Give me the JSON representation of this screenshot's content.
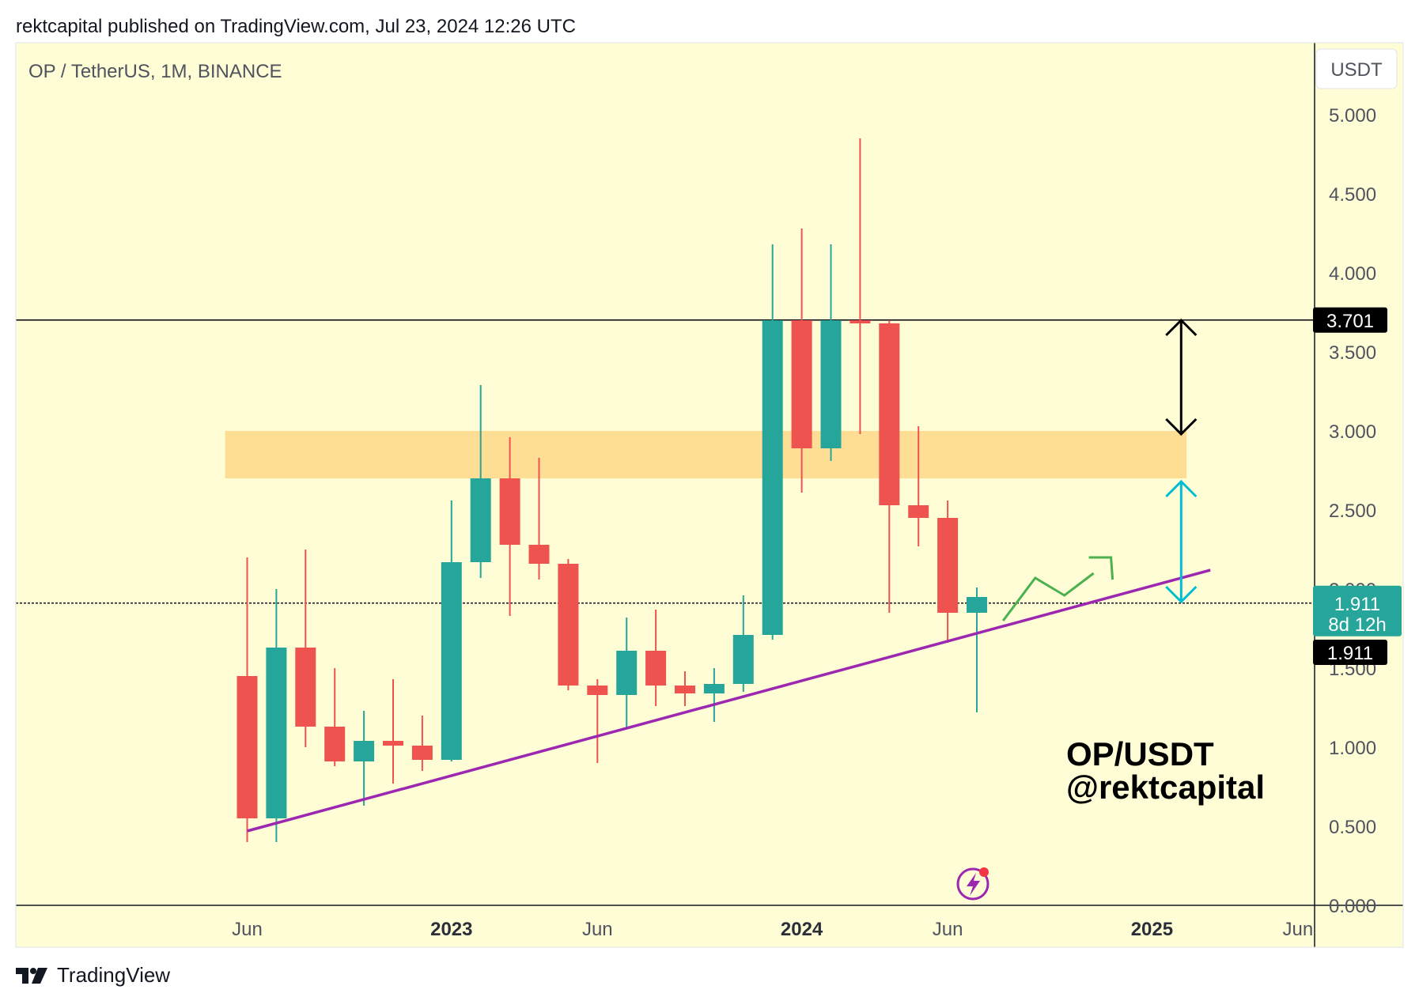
{
  "header": {
    "text": "rektcapital published on TradingView.com, Jul 23, 2024 12:26 UTC"
  },
  "footer": {
    "brand": "TradingView",
    "logo_icon": "tradingview-logo-icon"
  },
  "chart_data": {
    "type": "candlestick",
    "symbol": "OP / TetherUS, 1M, BINANCE",
    "currency": "USDT",
    "ylim": [
      0,
      5.25
    ],
    "y_ticks": [
      "5.000",
      "4.500",
      "4.000",
      "3.500",
      "3.000",
      "2.500",
      "2.000",
      "1.500",
      "1.000",
      "0.500",
      "0.000"
    ],
    "y_tick_values": [
      5.0,
      4.5,
      4.0,
      3.5,
      3.0,
      2.5,
      2.0,
      1.5,
      1.0,
      0.5,
      0.0
    ],
    "x_ticks": [
      {
        "label": "Jun",
        "index": 0,
        "bold": false
      },
      {
        "label": "2023",
        "index": 7,
        "bold": true
      },
      {
        "label": "Jun",
        "index": 12,
        "bold": false
      },
      {
        "label": "2024",
        "index": 19,
        "bold": true
      },
      {
        "label": "Jun",
        "index": 24,
        "bold": false
      },
      {
        "label": "2025",
        "index": 31,
        "bold": true
      },
      {
        "label": "Jun",
        "index": 36,
        "bold": false
      }
    ],
    "candles": [
      {
        "o": 1.45,
        "h": 2.2,
        "l": 0.4,
        "c": 0.55
      },
      {
        "o": 0.55,
        "h": 2.0,
        "l": 0.4,
        "c": 1.63
      },
      {
        "o": 1.63,
        "h": 2.25,
        "l": 1.0,
        "c": 1.13
      },
      {
        "o": 1.13,
        "h": 1.5,
        "l": 0.88,
        "c": 0.91
      },
      {
        "o": 0.91,
        "h": 1.23,
        "l": 0.63,
        "c": 1.04
      },
      {
        "o": 1.04,
        "h": 1.43,
        "l": 0.77,
        "c": 1.01
      },
      {
        "o": 1.01,
        "h": 1.2,
        "l": 0.85,
        "c": 0.92
      },
      {
        "o": 0.92,
        "h": 2.56,
        "l": 0.91,
        "c": 2.17
      },
      {
        "o": 2.17,
        "h": 3.29,
        "l": 2.07,
        "c": 2.7
      },
      {
        "o": 2.7,
        "h": 2.96,
        "l": 1.83,
        "c": 2.28
      },
      {
        "o": 2.28,
        "h": 2.83,
        "l": 2.06,
        "c": 2.16
      },
      {
        "o": 2.16,
        "h": 2.19,
        "l": 1.36,
        "c": 1.39
      },
      {
        "o": 1.39,
        "h": 1.43,
        "l": 0.9,
        "c": 1.33
      },
      {
        "o": 1.33,
        "h": 1.82,
        "l": 1.12,
        "c": 1.61
      },
      {
        "o": 1.61,
        "h": 1.87,
        "l": 1.26,
        "c": 1.39
      },
      {
        "o": 1.39,
        "h": 1.48,
        "l": 1.26,
        "c": 1.34
      },
      {
        "o": 1.34,
        "h": 1.5,
        "l": 1.16,
        "c": 1.4
      },
      {
        "o": 1.4,
        "h": 1.96,
        "l": 1.35,
        "c": 1.71
      },
      {
        "o": 1.71,
        "h": 4.18,
        "l": 1.68,
        "c": 3.7
      },
      {
        "o": 3.7,
        "h": 4.28,
        "l": 2.61,
        "c": 2.89
      },
      {
        "o": 2.89,
        "h": 4.18,
        "l": 2.81,
        "c": 3.7
      },
      {
        "o": 3.7,
        "h": 4.85,
        "l": 2.98,
        "c": 3.68
      },
      {
        "o": 3.68,
        "h": 3.7,
        "l": 1.85,
        "c": 2.53
      },
      {
        "o": 2.53,
        "h": 3.03,
        "l": 2.27,
        "c": 2.45
      },
      {
        "o": 2.45,
        "h": 2.56,
        "l": 1.66,
        "c": 1.85
      },
      {
        "o": 1.85,
        "h": 2.01,
        "l": 1.22,
        "c": 1.95
      }
    ],
    "colors": {
      "up": "#26a69a",
      "down": "#ef5350",
      "background": "#fefdd5"
    },
    "resistance_line": {
      "value": 3.701,
      "label": "3.701"
    },
    "current_price": {
      "value": 1.911,
      "label": "1.911",
      "countdown": "8d 12h"
    },
    "crosshair_label": "1.911",
    "supply_zone": {
      "from": 2.7,
      "to": 3.0,
      "start_index": -1,
      "end_index": 33,
      "color": "#fedd94"
    },
    "trendline": {
      "start": {
        "index": 0,
        "value": 0.47
      },
      "end": {
        "index": 33,
        "value": 2.12
      },
      "color": "#9c27b0"
    },
    "annotations": [
      "OP/USDT",
      "@rektcapital"
    ],
    "arrows": {
      "black": {
        "index": 32,
        "from": 3.7,
        "to": 2.98
      },
      "cyan": {
        "index": 32,
        "from": 2.68,
        "to": 1.92
      },
      "green_path": [
        {
          "index": 25.9,
          "value": 1.8
        },
        {
          "index": 27,
          "value": 2.07
        },
        {
          "index": 28,
          "value": 1.96
        },
        {
          "index": 29,
          "value": 2.1
        }
      ]
    }
  }
}
